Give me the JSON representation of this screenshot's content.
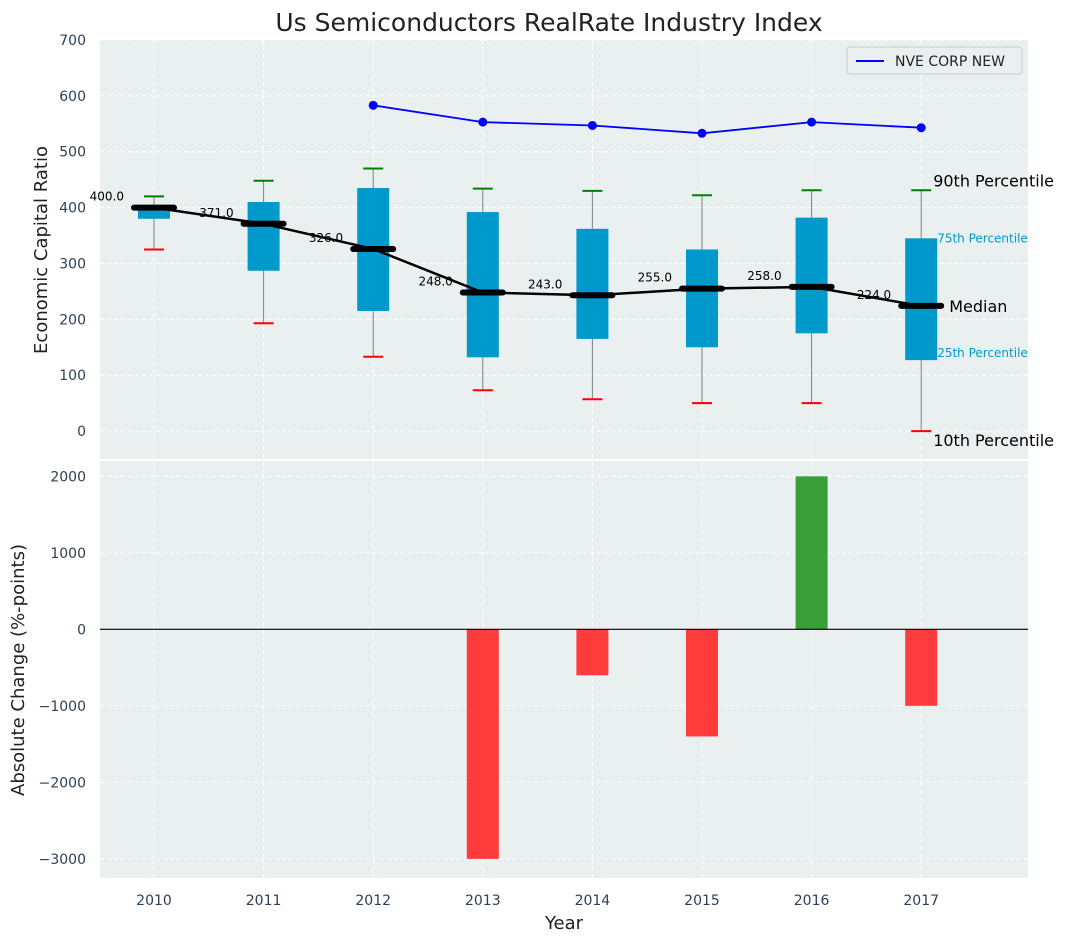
{
  "chart_data": [
    {
      "type": "box",
      "title": "Us Semiconductors RealRate Industry Index",
      "xlabel": "",
      "ylabel": "Economic Capital Ratio",
      "ylim": [
        -50,
        700
      ],
      "yticks": [
        0,
        100,
        200,
        300,
        400,
        500,
        600,
        700
      ],
      "categories": [
        "2010",
        "2011",
        "2012",
        "2013",
        "2014",
        "2015",
        "2016",
        "2017"
      ],
      "p10": [
        325,
        193,
        133,
        73,
        57,
        50,
        50,
        0
      ],
      "p25": [
        380,
        287,
        215,
        132,
        165,
        150,
        175,
        127
      ],
      "median": [
        400,
        371,
        326,
        248,
        243,
        255,
        258,
        224
      ],
      "median_labels": [
        "400.0",
        "371.0",
        "326.0",
        "248.0",
        "243.0",
        "255.0",
        "258.0",
        "224.0"
      ],
      "p75": [
        400,
        410,
        435,
        392,
        362,
        325,
        382,
        345
      ],
      "p90": [
        420,
        448,
        470,
        434,
        430,
        422,
        431,
        431
      ],
      "series": [
        {
          "name": "NVE CORP NEW",
          "categories": [
            "2012",
            "2013",
            "2014",
            "2015",
            "2016",
            "2017"
          ],
          "values": [
            583,
            553,
            547,
            533,
            553,
            543
          ],
          "color": "#0000ff"
        }
      ],
      "annotations": {
        "p90": "90th Percentile",
        "p75": "75th Percentile",
        "median": "Median",
        "p25": "25th Percentile",
        "p10": "10th Percentile"
      },
      "legend_position": "top-right"
    },
    {
      "type": "bar",
      "xlabel": "Year",
      "ylabel": "Absolute Change (%-points)",
      "ylim": [
        -3250,
        2200
      ],
      "yticks": [
        -3000,
        -2000,
        -1000,
        0,
        1000,
        2000
      ],
      "categories": [
        "2010",
        "2011",
        "2012",
        "2013",
        "2014",
        "2015",
        "2016",
        "2017"
      ],
      "values": [
        0,
        0,
        0,
        -3000,
        -600,
        -1400,
        2000,
        -1000
      ]
    }
  ],
  "colors": {
    "plot_bg": "#eaeff0",
    "box": "#0099cc",
    "median": "#000000",
    "whisker": "#808080",
    "cap_top": "#008000",
    "cap_bottom": "#ff0000",
    "positive": "#3a9e3a",
    "negative": "#ff3b3b",
    "annotation_accent": "#0099cc"
  }
}
